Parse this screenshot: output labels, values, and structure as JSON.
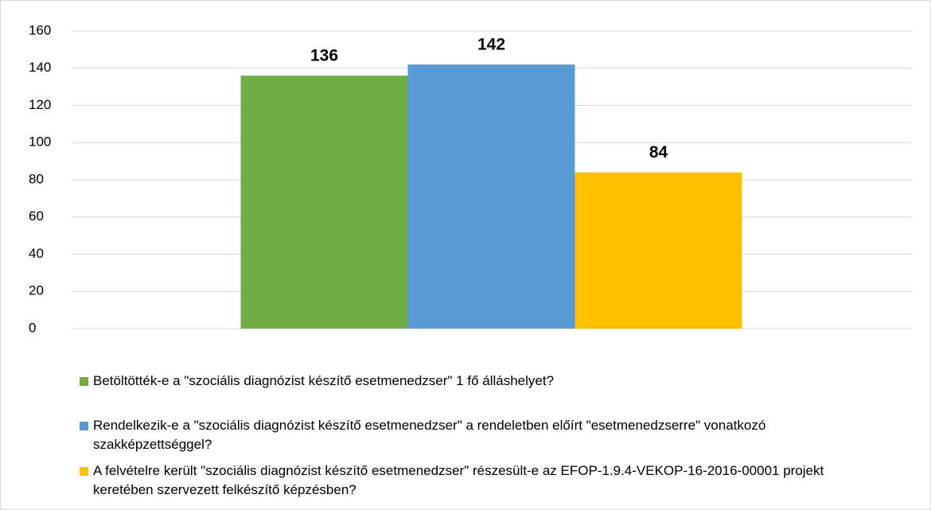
{
  "chart_data": {
    "type": "bar",
    "categories": [
      null
    ],
    "series": [
      {
        "name": "Betöltötték-e a \"szociális diagnózist készítő esetmenedzser\" 1 fő álláshelyet?",
        "color": "#70ad47",
        "values": [
          136
        ]
      },
      {
        "name": "Rendelkezik-e a \"szociális diagnózist készítő esetmenedzser\" a rendeletben előírt \"esetmenedzserre\" vonatkozó szakképzettséggel?",
        "color": "#5b9bd5",
        "values": [
          142
        ]
      },
      {
        "name": "A felvételre került \"szociális diagnózist készítő esetmenedzser\" részesült-e az EFOP-1.9.4-VEKOP-16-2016-00001 projekt keretében szervezett felkészítő képzésben?",
        "color": "#ffc000",
        "values": [
          84
        ]
      }
    ],
    "ylim": [
      0,
      160
    ],
    "yticks": [
      0,
      20,
      40,
      60,
      80,
      100,
      120,
      140,
      160
    ],
    "grid": true,
    "legend": "bottom"
  }
}
